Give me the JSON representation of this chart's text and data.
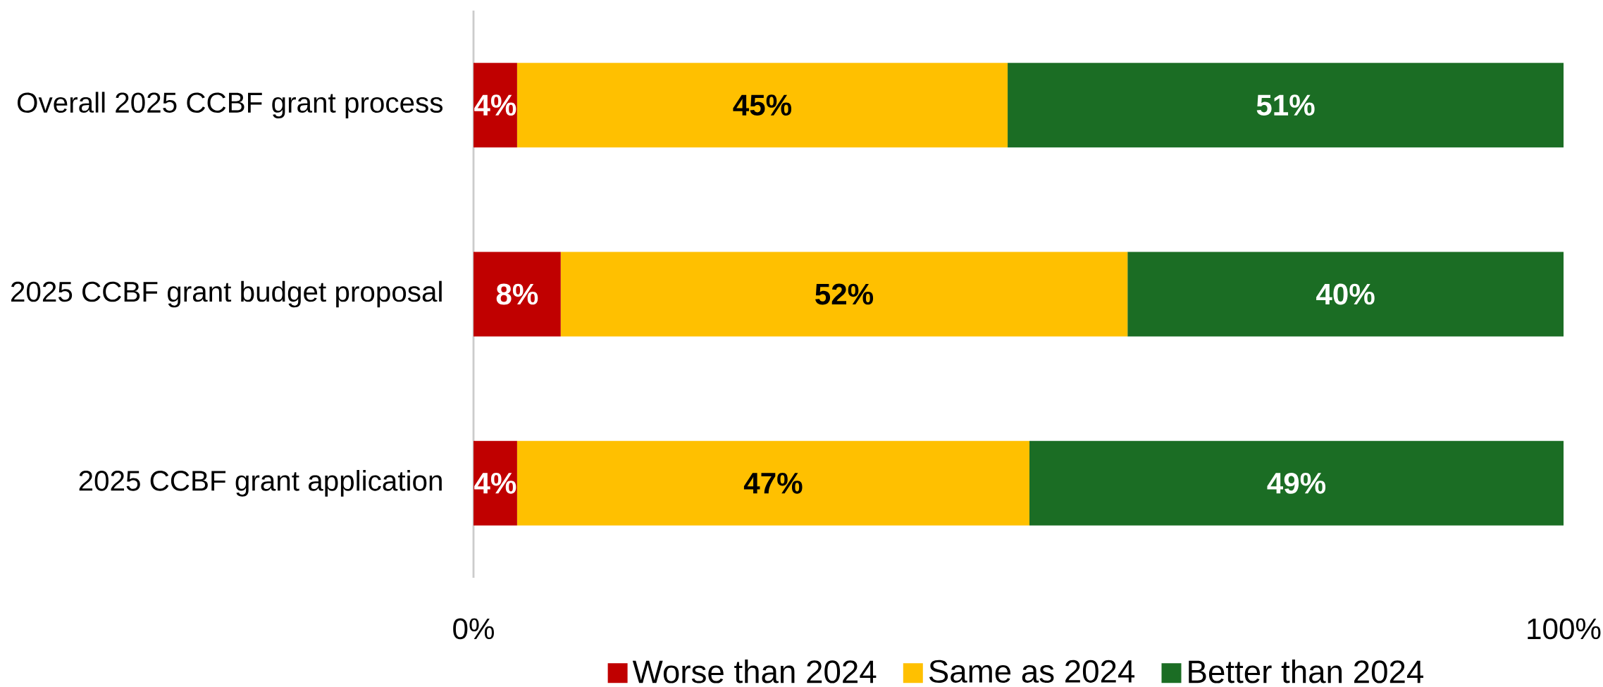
{
  "chart_data": {
    "type": "bar",
    "orientation": "horizontal",
    "stacked": true,
    "categories": [
      "Overall 2025 CCBF grant process",
      "2025 CCBF grant budget proposal",
      "2025 CCBF grant application"
    ],
    "series": [
      {
        "name": "Worse than 2024",
        "color": "#c00000",
        "values": [
          4,
          8,
          4
        ],
        "value_labels": [
          "4%",
          "8%",
          "4%"
        ]
      },
      {
        "name": "Same as 2024",
        "color": "#ffc000",
        "values": [
          45,
          52,
          47
        ],
        "value_labels": [
          "45%",
          "52%",
          "47%"
        ]
      },
      {
        "name": "Better than 2024",
        "color": "#1b6d24",
        "values": [
          51,
          40,
          49
        ],
        "value_labels": [
          "51%",
          "40%",
          "49%"
        ]
      }
    ],
    "xlim": [
      0,
      100
    ],
    "xticks": [
      {
        "value": 0,
        "label": "0%"
      },
      {
        "value": 100,
        "label": "100%"
      }
    ],
    "grid": false,
    "legend": "bottom"
  }
}
